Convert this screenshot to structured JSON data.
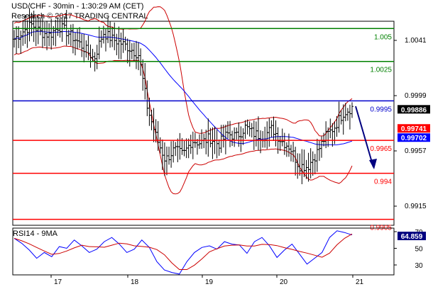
{
  "header": {
    "title": "USD/CHF - 30min - 1:30:29 AM (CET)",
    "subtitle": "Research © 2017 TRADING CENTRAL"
  },
  "colors": {
    "green": "#008000",
    "red": "#ff0000",
    "blue": "#0000cc",
    "bbands": "#cc0000",
    "ma": "#0000ff",
    "arrow": "#000080",
    "tag_red": "#ff0000",
    "tag_blue": "#0000ff",
    "tag_black": "#000000"
  },
  "chart_data": [
    {
      "type": "line",
      "subtype": "ohlc-bars",
      "x_categories": [
        "17",
        "18",
        "19",
        "20",
        "21"
      ],
      "y_tick_labels": [
        "1.0041",
        "0.9999",
        "0.9957",
        "0.9915"
      ],
      "ylim": [
        0.988,
        1.006
      ],
      "levels": [
        {
          "label": "1.005",
          "value": 1.005,
          "kind": "resistance",
          "color": "#008000"
        },
        {
          "label": "1.0025",
          "value": 1.0025,
          "kind": "resistance",
          "color": "#008000"
        },
        {
          "label": "0.9995",
          "value": 0.9995,
          "kind": "pivot",
          "color": "#0000cc"
        },
        {
          "label": "0.9965",
          "value": 0.9965,
          "kind": "support",
          "color": "#ff0000"
        },
        {
          "label": "0.994",
          "value": 0.994,
          "kind": "support",
          "color": "#ff0000"
        },
        {
          "label": "0.9905",
          "value": 0.9905,
          "kind": "support",
          "color": "#ff0000"
        }
      ],
      "price_tags": [
        {
          "label": "0.99886",
          "value": 0.99886,
          "color": "#000000"
        },
        {
          "label": "0.99741",
          "value": 0.99741,
          "color": "#ff0000"
        },
        {
          "label": "0.99702",
          "value": 0.99702,
          "color": "#0000ff"
        }
      ],
      "price_path": [
        1.0042,
        1.0048,
        1.0053,
        1.0047,
        1.0045,
        1.0052,
        1.0047,
        1.0041,
        1.0034,
        1.0027,
        1.0047,
        1.0042,
        1.0039,
        1.0035,
        1.003,
        0.9989,
        0.9967,
        0.995,
        0.9958,
        0.9954,
        0.9965,
        0.9963,
        0.9967,
        0.9962,
        0.997,
        0.9968,
        0.9975,
        0.997,
        0.9968,
        0.9974,
        0.9965,
        0.996,
        0.9946,
        0.9945,
        0.9955,
        0.9968,
        0.9975,
        0.9986,
        0.999
      ]
    },
    {
      "type": "line",
      "title": "RSI14 - 9MA",
      "value_label": "64.859",
      "y_tick_labels": [
        "70",
        "50",
        "30"
      ],
      "ylim": [
        15,
        75
      ],
      "rsi_path": [
        62,
        56,
        48,
        38,
        45,
        40,
        52,
        50,
        60,
        53,
        45,
        49,
        58,
        63,
        55,
        45,
        49,
        60,
        51,
        34,
        24,
        21,
        19,
        34,
        45,
        51,
        53,
        49,
        58,
        55,
        54,
        44,
        58,
        63,
        53,
        39,
        48,
        55,
        43,
        31,
        38,
        45,
        63,
        71,
        69,
        66
      ]
    }
  ]
}
